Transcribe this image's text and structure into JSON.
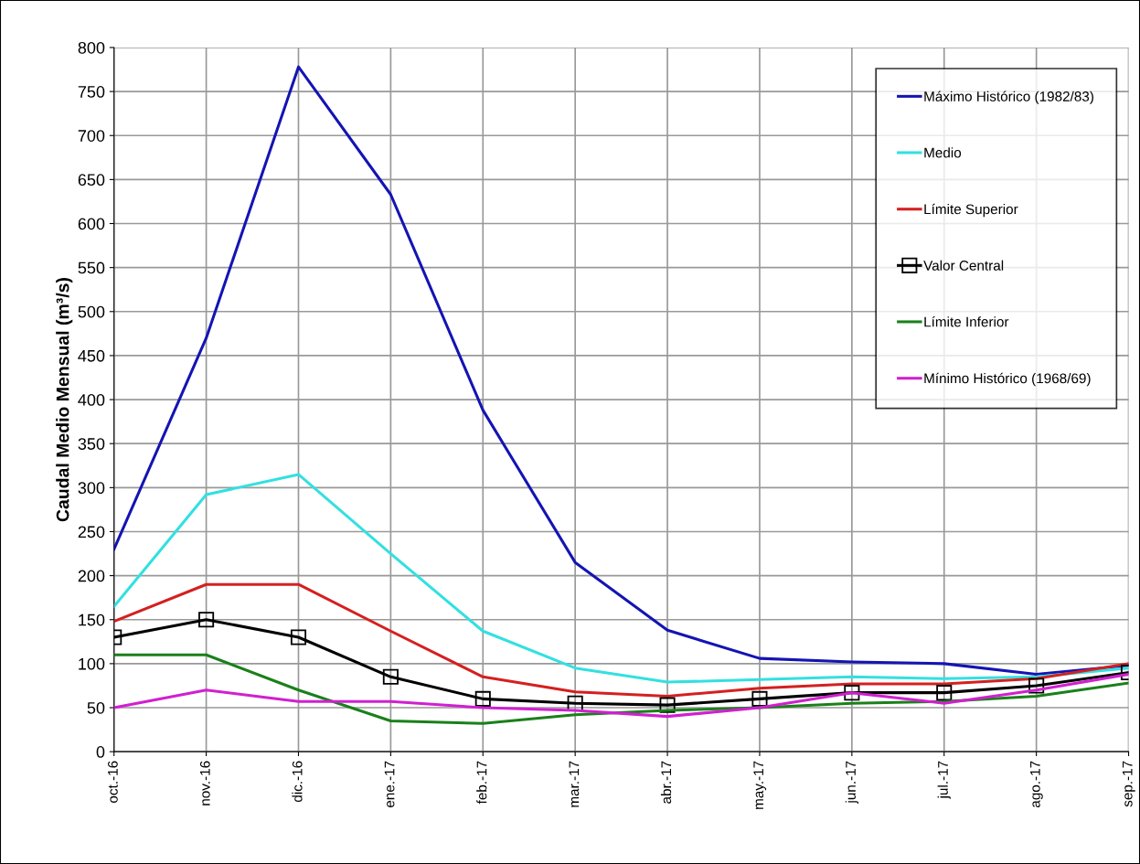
{
  "chart_data": {
    "type": "line",
    "ylabel": "Caudal Medio Mensual (m³/s)",
    "categories": [
      "oct.-16",
      "nov.-16",
      "dic.-16",
      "ene.-17",
      "feb.-17",
      "mar.-17",
      "abr.-17",
      "may.-17",
      "jun.-17",
      "jul.-17",
      "ago.-17",
      "sep.-17"
    ],
    "ylim": [
      0,
      800
    ],
    "yticks": [
      0,
      50,
      100,
      150,
      200,
      250,
      300,
      350,
      400,
      450,
      500,
      550,
      600,
      650,
      700,
      750,
      800
    ],
    "grid": true,
    "legend": "top right",
    "marker": "none",
    "line_style": "solid",
    "series": [
      {
        "name": "Máximo Histórico (1982/83)",
        "color": "#1414b4",
        "values": [
          230,
          470,
          778,
          633,
          388,
          215,
          138,
          106,
          102,
          100,
          88,
          98
        ]
      },
      {
        "name": "Medio",
        "color": "#33e0e0",
        "values": [
          165,
          292,
          315,
          225,
          137,
          95,
          79,
          82,
          85,
          83,
          85,
          95
        ]
      },
      {
        "name": "Límite Superior",
        "color": "#d42020",
        "values": [
          148,
          190,
          190,
          137,
          85,
          68,
          63,
          72,
          77,
          77,
          83,
          100
        ]
      },
      {
        "name": "Valor Central",
        "color": "#000000",
        "marker": "square",
        "values": [
          130,
          150,
          130,
          85,
          60,
          55,
          53,
          60,
          67,
          67,
          75,
          90
        ]
      },
      {
        "name": "Límite Inferior",
        "color": "#1a801a",
        "values": [
          110,
          110,
          70,
          35,
          32,
          42,
          47,
          50,
          55,
          57,
          63,
          78
        ]
      },
      {
        "name": "Mínimo Histórico (1968/69)",
        "color": "#d020d0",
        "values": [
          50,
          70,
          57,
          57,
          50,
          47,
          40,
          50,
          67,
          55,
          70,
          88
        ]
      }
    ]
  }
}
